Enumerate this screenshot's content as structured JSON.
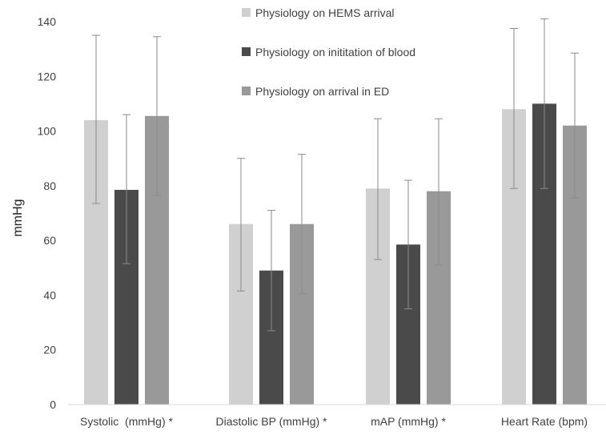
{
  "chart_data": {
    "type": "bar",
    "title": "",
    "xlabel": "",
    "ylabel": "mmHg",
    "ylim": [
      0,
      140
    ],
    "yticks": [
      0,
      20,
      40,
      60,
      80,
      100,
      120,
      140
    ],
    "grid": false,
    "legend_position": "top-center",
    "categories": [
      "Systolic  (mmHg) *",
      "Diastolic BP (mmHg) *",
      "mAP (mmHg) *",
      "Heart Rate (bpm)"
    ],
    "series": [
      {
        "name": "Physiology on HEMS arrival",
        "color": "#d0d0d0",
        "values": [
          104,
          66,
          79,
          108
        ],
        "error_low": [
          73.5,
          41.5,
          53,
          79
        ],
        "error_high": [
          135,
          90,
          104.5,
          137.5
        ]
      },
      {
        "name": "Physiology on inititation of blood",
        "color": "#4a4a4a",
        "values": [
          78.5,
          49,
          58.5,
          110
        ],
        "error_low": [
          51.5,
          27,
          35,
          79
        ],
        "error_high": [
          106,
          71,
          82,
          141
        ]
      },
      {
        "name": "Physiology on arrival in ED",
        "color": "#999999",
        "values": [
          105.5,
          66,
          78,
          102
        ],
        "error_low": [
          76.5,
          40.5,
          51,
          75.5
        ],
        "error_high": [
          134.5,
          91.5,
          104.5,
          128.5
        ]
      }
    ]
  }
}
